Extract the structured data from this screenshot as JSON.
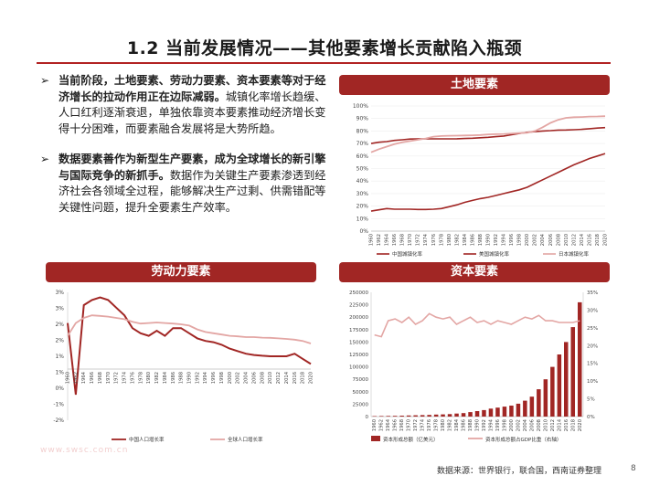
{
  "slide": {
    "title": "1.2 当前发展情况——其他要素增长贡献陷入瓶颈",
    "bullets": [
      {
        "bold": "当前阶段，土地要素、劳动力要素、资本要素等对于经济增长的拉动作用正在边际减弱。",
        "text": "城镇化率增长趋缓、人口红利逐渐衰退，单独依靠资本要素推动经济增长变得十分困难，而要素融合发展将是大势所趋。"
      },
      {
        "bold": "数据要素善作为新型生产要素，成为全球增长的新引擎与国际竞争的新抓手。",
        "text": "数据作为关键生产要素渗透到经济社会各领域全过程，能够解决生产过剩、供需错配等关键性问题，提升全要素生产效率。"
      }
    ],
    "bullet_marker": "➢",
    "source": "数据来源：世界银行，联合国，西南证券整理",
    "page": "8",
    "watermark": "www.swsc.com.cn"
  },
  "colors": {
    "accent": "#a12624",
    "series_dark": "#a12624",
    "series_light": "#e3a6a4"
  },
  "chart_data": [
    {
      "id": "land",
      "banner": "土地要素",
      "type": "line",
      "x": [
        1960,
        1962,
        1964,
        1966,
        1968,
        1970,
        1972,
        1974,
        1976,
        1978,
        1980,
        1982,
        1984,
        1986,
        1988,
        1990,
        1992,
        1994,
        1996,
        1998,
        2000,
        2002,
        2004,
        2006,
        2008,
        2010,
        2012,
        2014,
        2016,
        2018,
        2020
      ],
      "yticks": [
        "0%",
        "10%",
        "20%",
        "30%",
        "40%",
        "50%",
        "60%",
        "70%",
        "80%",
        "90%",
        "100%"
      ],
      "ylim": [
        0,
        100
      ],
      "series": [
        {
          "name": "中国城镇化率",
          "values": [
            16,
            17,
            18,
            17.5,
            17.5,
            17.5,
            17.3,
            17.3,
            17.5,
            18,
            19.5,
            21,
            23,
            24.5,
            26,
            27,
            28.5,
            30,
            31.5,
            33,
            35,
            38,
            41,
            44,
            47,
            50,
            53,
            55.5,
            58,
            60,
            62
          ]
        },
        {
          "name": "美国城镇化率",
          "values": [
            70,
            71,
            71.5,
            72.5,
            73,
            73.6,
            73.7,
            73.7,
            73.7,
            73.7,
            73.7,
            73.8,
            74,
            74.2,
            74.6,
            75,
            75.5,
            76,
            77,
            78,
            79,
            79.5,
            80,
            80.3,
            80.7,
            80.8,
            81,
            81.3,
            81.8,
            82.3,
            82.7
          ]
        },
        {
          "name": "日本城镇化率",
          "values": [
            63,
            65.5,
            67.5,
            69.5,
            71,
            72,
            73,
            74,
            75.5,
            76,
            76.2,
            76.3,
            76.4,
            76.6,
            76.8,
            77.3,
            77.5,
            77.7,
            78,
            78.3,
            78.6,
            80,
            83,
            86.5,
            89,
            90.5,
            91,
            91.2,
            91.5,
            91.6,
            91.8
          ]
        }
      ]
    },
    {
      "id": "labor",
      "banner": "劳动力要素",
      "type": "line",
      "x": [
        1960,
        1962,
        1964,
        1966,
        1968,
        1970,
        1972,
        1974,
        1976,
        1978,
        1980,
        1982,
        1984,
        1986,
        1988,
        1990,
        1992,
        1994,
        1996,
        1998,
        2000,
        2002,
        2004,
        2006,
        2008,
        2010,
        2012,
        2014,
        2016,
        2018,
        2020
      ],
      "yticks": [
        "-2%",
        "-1%",
        "0%",
        "1%",
        "1%",
        "2%",
        "2%",
        "3%",
        "3%"
      ],
      "ylim": [
        -2,
        3
      ],
      "series": [
        {
          "name": "中国人口增长率",
          "values": [
            1.8,
            -1,
            2.5,
            2.7,
            2.8,
            2.7,
            2.4,
            2.1,
            1.6,
            1.4,
            1.3,
            1.5,
            1.3,
            1.6,
            1.6,
            1.4,
            1.2,
            1.1,
            1.05,
            0.95,
            0.8,
            0.7,
            0.6,
            0.55,
            0.52,
            0.5,
            0.5,
            0.5,
            0.6,
            0.4,
            0.2
          ]
        },
        {
          "name": "全球人口增长率",
          "values": [
            1.3,
            1.8,
            2.0,
            2.1,
            2.08,
            2.05,
            2.0,
            1.95,
            1.85,
            1.78,
            1.8,
            1.82,
            1.8,
            1.78,
            1.75,
            1.7,
            1.55,
            1.45,
            1.4,
            1.35,
            1.3,
            1.28,
            1.25,
            1.25,
            1.23,
            1.22,
            1.2,
            1.18,
            1.15,
            1.1,
            1.0
          ]
        }
      ]
    },
    {
      "id": "capital",
      "banner": "资本要素",
      "type": "bar",
      "x": [
        1960,
        1962,
        1964,
        1966,
        1968,
        1970,
        1972,
        1974,
        1976,
        1978,
        1980,
        1982,
        1984,
        1986,
        1988,
        1990,
        1992,
        1994,
        1996,
        1998,
        2000,
        2002,
        2004,
        2006,
        2008,
        2010,
        2012,
        2014,
        2016,
        2018,
        2020
      ],
      "yticks_left": [
        "0",
        "25000",
        "50000",
        "75000",
        "100000",
        "125000",
        "150000",
        "175000",
        "200000",
        "225000",
        "250000"
      ],
      "yticks_right": [
        "0%",
        "5%",
        "10%",
        "15%",
        "20%",
        "25%",
        "30%",
        "35%"
      ],
      "ylim_left": [
        0,
        250000
      ],
      "ylim_right": [
        0,
        35
      ],
      "series": [
        {
          "name": "资本形成总额（亿美元）",
          "axis": "left",
          "values": [
            1000,
            1100,
            1300,
            1500,
            1800,
            2200,
            2600,
            3000,
            3300,
            4000,
            4500,
            5000,
            6000,
            7000,
            9000,
            11000,
            13000,
            16000,
            18000,
            20000,
            22000,
            26000,
            32000,
            40000,
            55000,
            75000,
            100000,
            125000,
            150000,
            180000,
            230000
          ]
        },
        {
          "name": "资本形成总额占GDP比重（右轴）",
          "axis": "right",
          "values": [
            23,
            22.5,
            27,
            27.5,
            26.5,
            28,
            26,
            27,
            29,
            28,
            27.5,
            28,
            26,
            27,
            28,
            26.5,
            27,
            26,
            27,
            26.5,
            26,
            27,
            28,
            27.5,
            28.5,
            27,
            27,
            26.5,
            26.5,
            26.5,
            27
          ]
        }
      ]
    }
  ]
}
